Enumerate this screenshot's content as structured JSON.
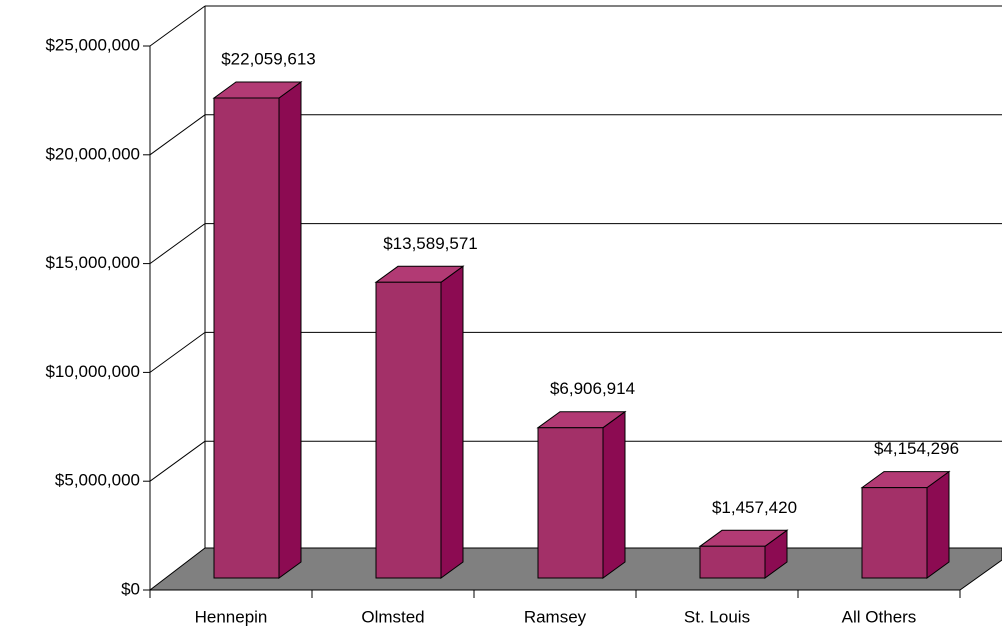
{
  "chart_data": {
    "type": "bar3d",
    "categories": [
      "Hennepin",
      "Olmsted",
      "Ramsey",
      "St. Louis",
      "All Others"
    ],
    "values": [
      22059613,
      13589571,
      6906914,
      1457420,
      4154296
    ],
    "value_labels": [
      "$22,059,613",
      "$13,589,571",
      "$6,906,914",
      "$1,457,420",
      "$4,154,296"
    ],
    "color": "#a33068",
    "ylim": [
      0,
      25000000
    ],
    "yticks": [
      {
        "value": 0,
        "label": "$0"
      },
      {
        "value": 5000000,
        "label": "$5,000,000"
      },
      {
        "value": 10000000,
        "label": "$10,000,000"
      },
      {
        "value": 15000000,
        "label": "$15,000,000"
      },
      {
        "value": 20000000,
        "label": "$20,000,000"
      },
      {
        "value": 25000000,
        "label": "$25,000,000"
      }
    ],
    "grid": true
  }
}
